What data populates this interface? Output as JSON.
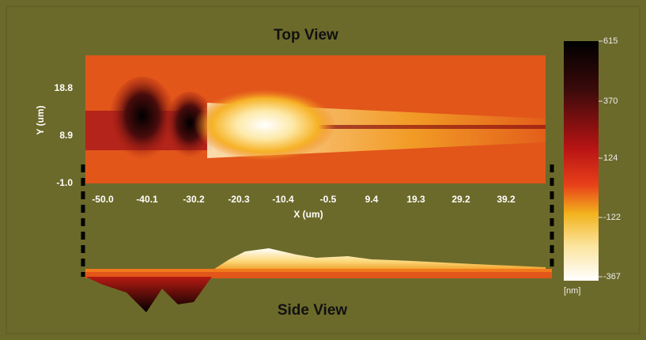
{
  "top_view": {
    "title": "Top View",
    "y_axis_label": "Y (um)",
    "y_ticks": [
      "18.8",
      "8.9",
      "-1.0"
    ],
    "x_axis_label": "X (um)",
    "x_ticks": [
      "-50.0",
      "-40.1",
      "-30.2",
      "-20.3",
      "-10.4",
      "-0.5",
      "9.4",
      "19.3",
      "29.2",
      "39.2"
    ]
  },
  "side_view": {
    "title": "Side View"
  },
  "colorbar": {
    "ticks": [
      "615",
      "370",
      "124",
      "-122",
      "-367"
    ],
    "unit": "[nm]"
  }
}
